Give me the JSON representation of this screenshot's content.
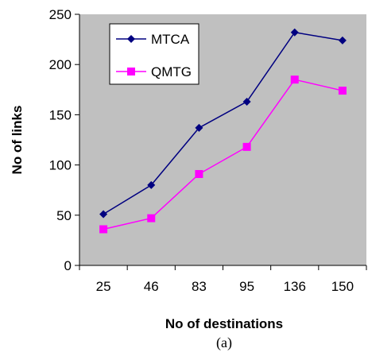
{
  "chart_data": {
    "type": "line",
    "categories": [
      "25",
      "46",
      "83",
      "95",
      "136",
      "150"
    ],
    "series": [
      {
        "name": "MTCA",
        "values": [
          51,
          80,
          137,
          163,
          232,
          224
        ],
        "color": "#000080",
        "marker": "diamond"
      },
      {
        "name": "QMTG",
        "values": [
          36,
          47,
          91,
          118,
          185,
          174
        ],
        "color": "#FF00FF",
        "marker": "square"
      }
    ],
    "xlabel": "No of destinations",
    "ylabel": "No of links",
    "ylim": [
      0,
      250
    ],
    "yticks": [
      0,
      50,
      100,
      150,
      200,
      250
    ],
    "plot_background": "#C0C0C0",
    "grid": false,
    "legend_position": "top-left"
  },
  "caption": "(a)"
}
